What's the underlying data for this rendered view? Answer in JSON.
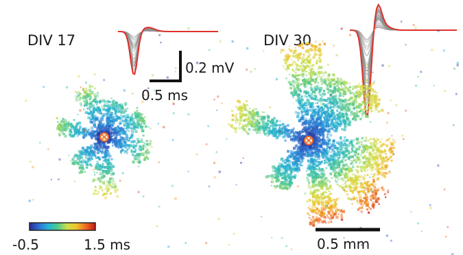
{
  "panels": [
    {
      "label": "DIV 17"
    },
    {
      "label": "DIV 30"
    }
  ],
  "scale_bars": {
    "voltage": "0.2 mV",
    "time": "0.5 ms",
    "distance": "0.5 mm"
  },
  "colorbar": {
    "min_label": "-0.5",
    "max_label": "1.5 ms",
    "colormap": [
      "#2b2b8f",
      "#2f6fd0",
      "#25b4d8",
      "#52c98b",
      "#cde04a",
      "#f2c12e",
      "#ee6a1f",
      "#c81818"
    ]
  },
  "colors": {
    "trace_mean": "#e0302a",
    "trace_individual": "#8c8c8c",
    "initiation_site": "#e86a2a"
  }
}
